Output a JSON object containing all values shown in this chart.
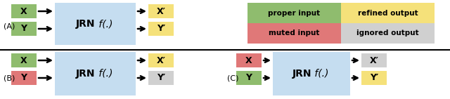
{
  "bg_color": "#ffffff",
  "green_color": "#8fbc6e",
  "yellow_color": "#f5e17a",
  "red_color": "#e07878",
  "gray_color": "#d0d0d0",
  "blue_color": "#c5ddf0",
  "label_A": "(A)",
  "label_B": "(B)",
  "label_C": "(C)",
  "jrn_text": "JRN",
  "jrn_italic": " f(.)",
  "X_label": "X",
  "Y_label": "Y",
  "Xp_label": "X′",
  "Yp_label": "Y′",
  "legend_proper": "proper input",
  "legend_muted": "muted input",
  "legend_refined": "refined output",
  "legend_ignored": "ignored output"
}
